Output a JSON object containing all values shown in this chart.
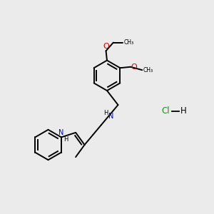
{
  "background_color": "#ebebeb",
  "bond_color": "#000000",
  "n_color": "#0000cc",
  "o_color": "#cc0000",
  "green_color": "#228B22",
  "text_color": "#000000",
  "figsize": [
    3.0,
    3.0
  ],
  "dpi": 100,
  "xlim": [
    0,
    10
  ],
  "ylim": [
    0,
    10
  ]
}
